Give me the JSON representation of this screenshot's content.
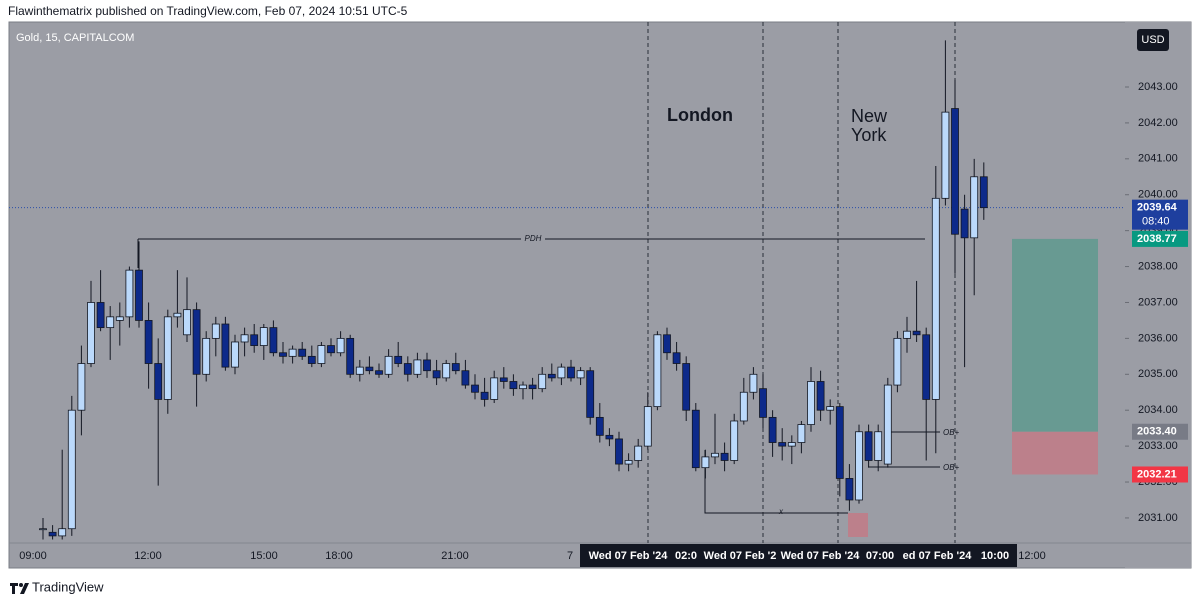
{
  "header": {
    "text": "Flawinthematrix published on TradingView.com, Feb 07, 2024 10:51 UTC-5"
  },
  "footer": {
    "brand": "TradingView"
  },
  "chart_data": {
    "type": "candlestick",
    "title": "Gold, 15, CAPITALCOM",
    "currency": "USD",
    "up_color": "#bbd9fb",
    "down_color": "#0d2a8a",
    "ylim": [
      2030.33,
      2044.81
    ],
    "yticks": [
      {
        "value": 2031,
        "label": "2031.00"
      },
      {
        "value": 2032,
        "label": "2032.00"
      },
      {
        "value": 2033,
        "label": "2033.00"
      },
      {
        "value": 2034,
        "label": "2034.00"
      },
      {
        "value": 2035,
        "label": "2035.00"
      },
      {
        "value": 2036,
        "label": "2036.00"
      },
      {
        "value": 2037,
        "label": "2037.00"
      },
      {
        "value": 2038,
        "label": "2038.00"
      },
      {
        "value": 2039,
        "label": "2039.00"
      },
      {
        "value": 2040,
        "label": "2040.00"
      },
      {
        "value": 2041,
        "label": "2041.00"
      },
      {
        "value": 2042,
        "label": "2042.00"
      },
      {
        "value": 2043,
        "label": "2043.00"
      }
    ],
    "time_labels": [
      "09:00",
      "12:00",
      "15:00",
      "18:00",
      "21:00",
      "7",
      "Wed 07 Feb '24",
      "02:0",
      "Wed 07 Feb '2",
      "Wed 07 Feb '24",
      "07:00",
      "ed 07 Feb '24",
      "10:00",
      "12:00"
    ],
    "open": [
      2030.7,
      2030.6,
      2030.5,
      2030.7,
      2034.0,
      2035.3,
      2037.0,
      2036.3,
      2036.5,
      2036.6,
      2037.9,
      2036.5,
      2035.3,
      2034.3,
      2036.6,
      2036.1,
      2036.8,
      2035.0,
      2036.0,
      2036.4,
      2035.2,
      2035.9,
      2036.1,
      2035.8,
      2036.3,
      2035.6,
      2035.5,
      2035.7,
      2035.5,
      2035.3,
      2035.8,
      2035.6,
      2036.0,
      2035.0,
      2035.2,
      2035.1,
      2035.0,
      2035.5,
      2035.3,
      2035.0,
      2035.4,
      2035.1,
      2034.9,
      2035.3,
      2035.1,
      2034.7,
      2034.5,
      2034.3,
      2034.9,
      2034.8,
      2034.6,
      2034.7,
      2034.6,
      2035.0,
      2034.9,
      2035.2,
      2034.9,
      2035.1,
      2033.8,
      2033.3,
      2033.2,
      2032.5,
      2032.6,
      2033.0,
      2034.1,
      2036.1,
      2035.6,
      2035.3,
      2034.0,
      2032.4,
      2032.7,
      2032.8,
      2032.6,
      2033.7,
      2034.5,
      2034.6,
      2033.8,
      2033.1,
      2033.0,
      2033.1,
      2033.6,
      2034.8,
      2034.0,
      2034.1,
      2032.1,
      2031.5,
      2033.4,
      2032.6,
      2032.5,
      2034.7,
      2036.0,
      2036.2,
      2036.1,
      2034.3,
      2039.9,
      2042.4,
      2039.6,
      2038.8,
      2040.5
    ],
    "high": [
      2031.0,
      2030.8,
      2032.9,
      2034.4,
      2035.8,
      2037.6,
      2037.9,
      2036.9,
      2037.0,
      2038.0,
      2038.7,
      2037.0,
      2036.0,
      2036.8,
      2037.9,
      2037.7,
      2037.0,
      2036.2,
      2036.6,
      2036.6,
      2036.1,
      2036.3,
      2036.4,
      2036.4,
      2036.5,
      2035.9,
      2035.8,
      2035.9,
      2035.8,
      2035.9,
      2036.0,
      2036.2,
      2036.1,
      2035.4,
      2035.5,
      2035.3,
      2035.7,
      2035.9,
      2035.5,
      2035.6,
      2035.6,
      2035.4,
      2035.4,
      2035.6,
      2035.4,
      2035.0,
      2034.9,
      2035.1,
      2035.2,
      2035.0,
      2034.8,
      2034.9,
      2035.2,
      2035.3,
      2035.3,
      2035.4,
      2035.2,
      2035.2,
      2034.2,
      2033.5,
      2033.4,
      2032.8,
      2033.2,
      2034.5,
      2036.2,
      2036.3,
      2035.9,
      2035.5,
      2034.2,
      2032.9,
      2033.9,
      2033.1,
      2033.9,
      2034.9,
      2035.2,
      2035.0,
      2034.0,
      2033.5,
      2033.3,
      2033.7,
      2035.2,
      2035.1,
      2034.3,
      2034.2,
      2032.5,
      2033.6,
      2033.6,
      2033.6,
      2034.9,
      2036.2,
      2036.6,
      2037.6,
      2036.3,
      2040.8,
      2044.3,
      2043.2,
      2040.0,
      2041.0,
      2040.9
    ],
    "low": [
      2030.4,
      2030.4,
      2030.4,
      2030.5,
      2033.3,
      2035.2,
      2036.2,
      2035.4,
      2035.8,
      2036.3,
      2036.3,
      2034.6,
      2031.9,
      2033.9,
      2036.3,
      2035.9,
      2034.1,
      2034.8,
      2035.5,
      2035.1,
      2035.0,
      2035.5,
      2035.6,
      2035.4,
      2035.5,
      2035.3,
      2035.3,
      2035.4,
      2035.2,
      2035.2,
      2035.5,
      2035.5,
      2034.9,
      2034.8,
      2035.0,
      2034.9,
      2034.9,
      2035.2,
      2034.8,
      2034.9,
      2034.9,
      2034.7,
      2034.8,
      2035.0,
      2034.6,
      2034.3,
      2034.1,
      2034.2,
      2034.6,
      2034.4,
      2034.3,
      2034.3,
      2034.5,
      2034.8,
      2034.7,
      2034.8,
      2034.7,
      2033.6,
      2033.1,
      2033.0,
      2032.3,
      2032.3,
      2032.4,
      2032.9,
      2034.0,
      2035.4,
      2035.1,
      2033.7,
      2032.3,
      2032.1,
      2032.5,
      2032.3,
      2032.5,
      2033.6,
      2034.3,
      2033.5,
      2032.7,
      2032.6,
      2032.5,
      2032.8,
      2033.4,
      2033.7,
      2033.6,
      2031.6,
      2031.2,
      2031.4,
      2032.4,
      2032.3,
      2032.4,
      2034.5,
      2035.6,
      2035.9,
      2032.6,
      2032.8,
      2039.7,
      2037.8,
      2035.2,
      2037.2,
      2039.3
    ],
    "close": [
      2030.7,
      2030.5,
      2030.7,
      2034.0,
      2035.3,
      2037.0,
      2036.3,
      2036.6,
      2036.6,
      2037.9,
      2036.5,
      2035.3,
      2034.3,
      2036.6,
      2036.7,
      2036.8,
      2035.0,
      2036.0,
      2036.4,
      2035.2,
      2035.9,
      2036.1,
      2035.8,
      2036.3,
      2035.6,
      2035.5,
      2035.7,
      2035.5,
      2035.3,
      2035.8,
      2035.6,
      2036.0,
      2035.0,
      2035.2,
      2035.1,
      2035.0,
      2035.5,
      2035.3,
      2035.0,
      2035.4,
      2035.1,
      2034.9,
      2035.3,
      2035.1,
      2034.7,
      2034.5,
      2034.3,
      2034.9,
      2034.8,
      2034.6,
      2034.7,
      2034.6,
      2035.0,
      2034.9,
      2035.2,
      2034.9,
      2035.1,
      2033.8,
      2033.3,
      2033.2,
      2032.5,
      2032.6,
      2033.0,
      2034.1,
      2036.1,
      2035.6,
      2035.3,
      2034.0,
      2032.4,
      2032.7,
      2032.8,
      2032.6,
      2033.7,
      2034.5,
      2035.0,
      2033.8,
      2033.1,
      2033.0,
      2033.1,
      2033.6,
      2034.8,
      2034.0,
      2034.1,
      2032.1,
      2031.5,
      2033.4,
      2032.6,
      2033.4,
      2034.7,
      2036.0,
      2036.2,
      2036.1,
      2034.3,
      2039.9,
      2042.3,
      2038.9,
      2038.8,
      2040.5,
      2039.64
    ],
    "last_price": 2039.64,
    "countdown": "08:40",
    "position": {
      "target": 2038.77,
      "entry": {
        "value": 2033.4,
        "label": "2033.40"
      },
      "stop": 2032.21
    },
    "annotations": {
      "london": "London",
      "new_york": [
        "New",
        "York"
      ],
      "pdh": "PDH",
      "x": "x",
      "ob_upper": "OB+",
      "ob_lower": "OB+"
    }
  }
}
